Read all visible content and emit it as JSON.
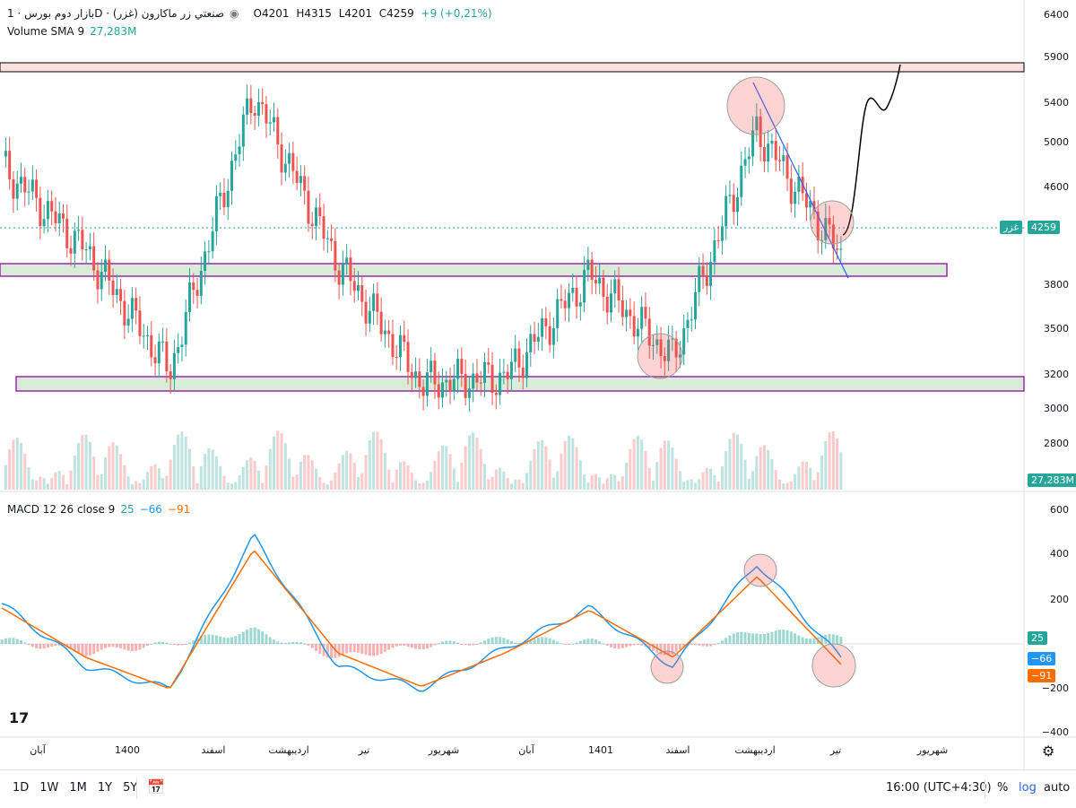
{
  "header": {
    "symbol_title": "بازار دوم بورس · 1D · صنعتي زر ماكارون (غزر)",
    "ohlc": {
      "o": "O4201",
      "h": "H4315",
      "l": "L4201",
      "c": "C4259",
      "chg": "+9 (+0,21%)"
    },
    "volume_label": "Volume SMA 9",
    "volume_value": "27,283M"
  },
  "macd_header": {
    "label": "MACD 12 26 close 9",
    "v1": "25",
    "v2": "−66",
    "v3": "−91"
  },
  "badges": {
    "symbol": "غزر",
    "price": "4259",
    "volume": "27,283M",
    "macd_hist": "25",
    "macd_line": "−66",
    "macd_signal": "−91"
  },
  "price_axis": [
    "6400",
    "5900",
    "5400",
    "5000",
    "4600",
    "4259",
    "3800",
    "3500",
    "3200",
    "3000",
    "2800"
  ],
  "macd_axis": [
    "600",
    "400",
    "200",
    "0",
    "−200",
    "−400"
  ],
  "time_axis": [
    "آبان",
    "1400",
    "اسفند",
    "اردیبهشت",
    "تیر",
    "شهریور",
    "آبان",
    "1401",
    "اسفند",
    "اردیبهشت",
    "تیر",
    "شهریور"
  ],
  "timeframes": [
    "1D",
    "1W",
    "1M",
    "1Y",
    "5Y"
  ],
  "footer": {
    "clock": "16:00 (UTC+4:30)",
    "percent": "%",
    "log": "log",
    "auto": "auto"
  },
  "colors": {
    "up": "#26a69a",
    "down": "#ef5350",
    "macd": "#2196f3",
    "signal": "#ff6d00",
    "zone": "#c8e6c9",
    "zone_border": "#9c27b0"
  },
  "chart_data": {
    "type": "line",
    "title": "بازار دوم بورس · 1D · صنعتي زر ماكارون (غزر)",
    "ylim": [
      2600,
      6600
    ],
    "series": [
      {
        "name": "Close",
        "x": [
          "آبان",
          "1400",
          "اسفند",
          "اردیبهشت",
          "تیر",
          "شهریور",
          "آبان",
          "1401",
          "اسفند",
          "اردیبهشت",
          "تیر"
        ],
        "values": [
          5000,
          4300,
          3300,
          5600,
          4200,
          3200,
          3250,
          4100,
          3400,
          5300,
          4259
        ]
      }
    ],
    "levels": [
      5750,
      3950,
      3150
    ],
    "macd": {
      "name": "MACD 12 26 close 9",
      "ylim": [
        -400,
        600
      ],
      "values": [
        180,
        -100,
        -200,
        480,
        -100,
        -200,
        -20,
        160,
        -100,
        360,
        -66
      ],
      "signal": [
        160,
        -60,
        -200,
        420,
        -40,
        -190,
        -40,
        150,
        -60,
        300,
        -91
      ]
    }
  }
}
